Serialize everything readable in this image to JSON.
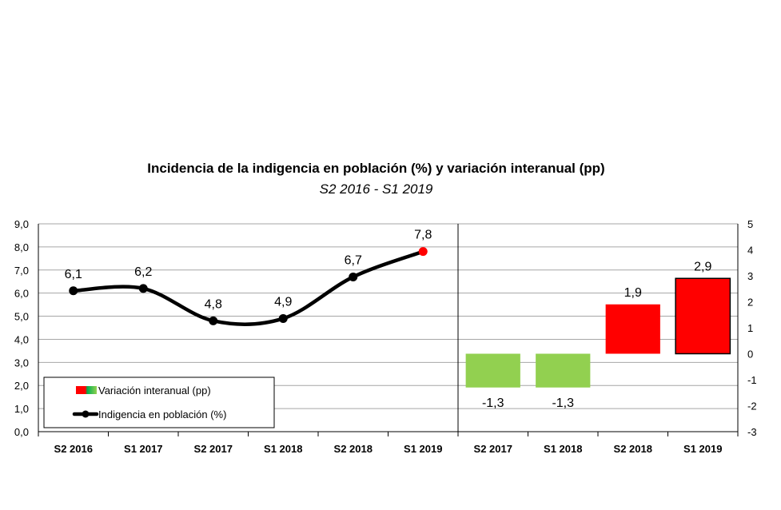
{
  "title": "Incidencia de la indigencia en población (%) y variación interanual (pp)",
  "subtitle": "S2 2016 - S1 2019",
  "colors": {
    "line": "#000000",
    "marker": "#000000",
    "last_marker": "#ff0000",
    "negative_bar": "#92d050",
    "positive_bar": "#ff0000",
    "grid": "#a6a6a6"
  },
  "chart_data": [
    {
      "type": "line",
      "name": "Indigencia en población (%)",
      "categories": [
        "S2 2016",
        "S1 2017",
        "S2 2017",
        "S1 2018",
        "S2 2018",
        "S1 2019"
      ],
      "values": [
        6.1,
        6.2,
        4.8,
        4.9,
        6.7,
        7.8
      ],
      "value_labels": [
        "6,1",
        "6,2",
        "4,8",
        "4,9",
        "6,7",
        "7,8"
      ],
      "ylim": [
        0,
        9
      ],
      "yticks": [
        "0,0",
        "1,0",
        "2,0",
        "3,0",
        "4,0",
        "5,0",
        "6,0",
        "7,0",
        "8,0",
        "9,0"
      ],
      "grid": true,
      "smooth": true
    },
    {
      "type": "bar",
      "name": "Variación interanual (pp)",
      "categories": [
        "S2 2017",
        "S1 2018",
        "S2 2018",
        "S1 2019"
      ],
      "values": [
        -1.3,
        -1.3,
        1.9,
        2.9
      ],
      "value_labels": [
        "-1,3",
        "-1,3",
        "1,9",
        "2,9"
      ],
      "ylim": [
        -3,
        5
      ],
      "yticks": [
        "-3",
        "-2",
        "-1",
        "0",
        "1",
        "2",
        "3",
        "4",
        "5"
      ],
      "axis": "right"
    }
  ],
  "legend": {
    "position": "bottom-left",
    "items": [
      {
        "label": "Variación interanual (pp)"
      },
      {
        "label": "Indigencia en población (%)"
      }
    ]
  }
}
